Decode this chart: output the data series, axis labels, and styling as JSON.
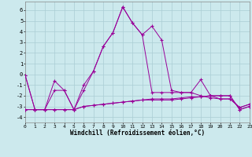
{
  "background_color": "#cce9ed",
  "grid_color": "#b0d4d8",
  "line_color": "#990099",
  "xlabel": "Windchill (Refroidissement éolien,°C)",
  "xlim": [
    0,
    23
  ],
  "ylim": [
    -4.5,
    6.8
  ],
  "yticks": [
    -4,
    -3,
    -2,
    -1,
    0,
    1,
    2,
    3,
    4,
    5,
    6
  ],
  "xticks": [
    0,
    1,
    2,
    3,
    4,
    5,
    6,
    7,
    8,
    9,
    10,
    11,
    12,
    13,
    14,
    15,
    16,
    17,
    18,
    19,
    20,
    21,
    22,
    23
  ],
  "series": [
    {
      "x": [
        0,
        1,
        2,
        3,
        4,
        5,
        6,
        7,
        8,
        9,
        10,
        11,
        12,
        13,
        14,
        15,
        16,
        17,
        18,
        19,
        20,
        21,
        22,
        23
      ],
      "y": [
        -0.1,
        -3.3,
        -3.3,
        -0.6,
        -1.5,
        -3.3,
        -1.0,
        0.3,
        2.6,
        3.9,
        6.3,
        4.8,
        3.7,
        4.5,
        3.2,
        -1.5,
        -1.7,
        -1.7,
        -0.5,
        -2.0,
        -2.3,
        -2.3,
        -3.1,
        -2.8
      ]
    },
    {
      "x": [
        0,
        1,
        2,
        3,
        4,
        5,
        6,
        7,
        8,
        9,
        10,
        11,
        12,
        13,
        14,
        15,
        16,
        17,
        18,
        19,
        20,
        21,
        22,
        23
      ],
      "y": [
        -0.1,
        -3.3,
        -3.3,
        -1.5,
        -1.5,
        -3.3,
        -1.5,
        0.3,
        2.6,
        3.9,
        6.3,
        4.8,
        3.7,
        -1.7,
        -1.7,
        -1.7,
        -1.7,
        -1.7,
        -2.0,
        -2.2,
        -2.3,
        -2.3,
        -3.1,
        -2.8
      ]
    },
    {
      "x": [
        0,
        1,
        2,
        3,
        4,
        5,
        6,
        7,
        8,
        9,
        10,
        11,
        12,
        13,
        14,
        15,
        16,
        17,
        18,
        19,
        20,
        21,
        22,
        23
      ],
      "y": [
        -3.3,
        -3.3,
        -3.3,
        -3.3,
        -3.3,
        -3.3,
        -3.0,
        -2.9,
        -2.8,
        -2.7,
        -2.6,
        -2.5,
        -2.4,
        -2.3,
        -2.3,
        -2.3,
        -2.2,
        -2.1,
        -2.1,
        -2.0,
        -2.0,
        -2.0,
        -3.3,
        -3.0
      ]
    },
    {
      "x": [
        0,
        1,
        2,
        3,
        4,
        5,
        6,
        7,
        8,
        9,
        10,
        11,
        12,
        13,
        14,
        15,
        16,
        17,
        18,
        19,
        20,
        21,
        22,
        23
      ],
      "y": [
        -3.3,
        -3.3,
        -3.3,
        -3.3,
        -3.3,
        -3.3,
        -3.0,
        -2.9,
        -2.8,
        -2.7,
        -2.6,
        -2.5,
        -2.4,
        -2.4,
        -2.4,
        -2.4,
        -2.3,
        -2.2,
        -2.1,
        -2.0,
        -2.0,
        -2.0,
        -3.3,
        -3.0
      ]
    }
  ]
}
